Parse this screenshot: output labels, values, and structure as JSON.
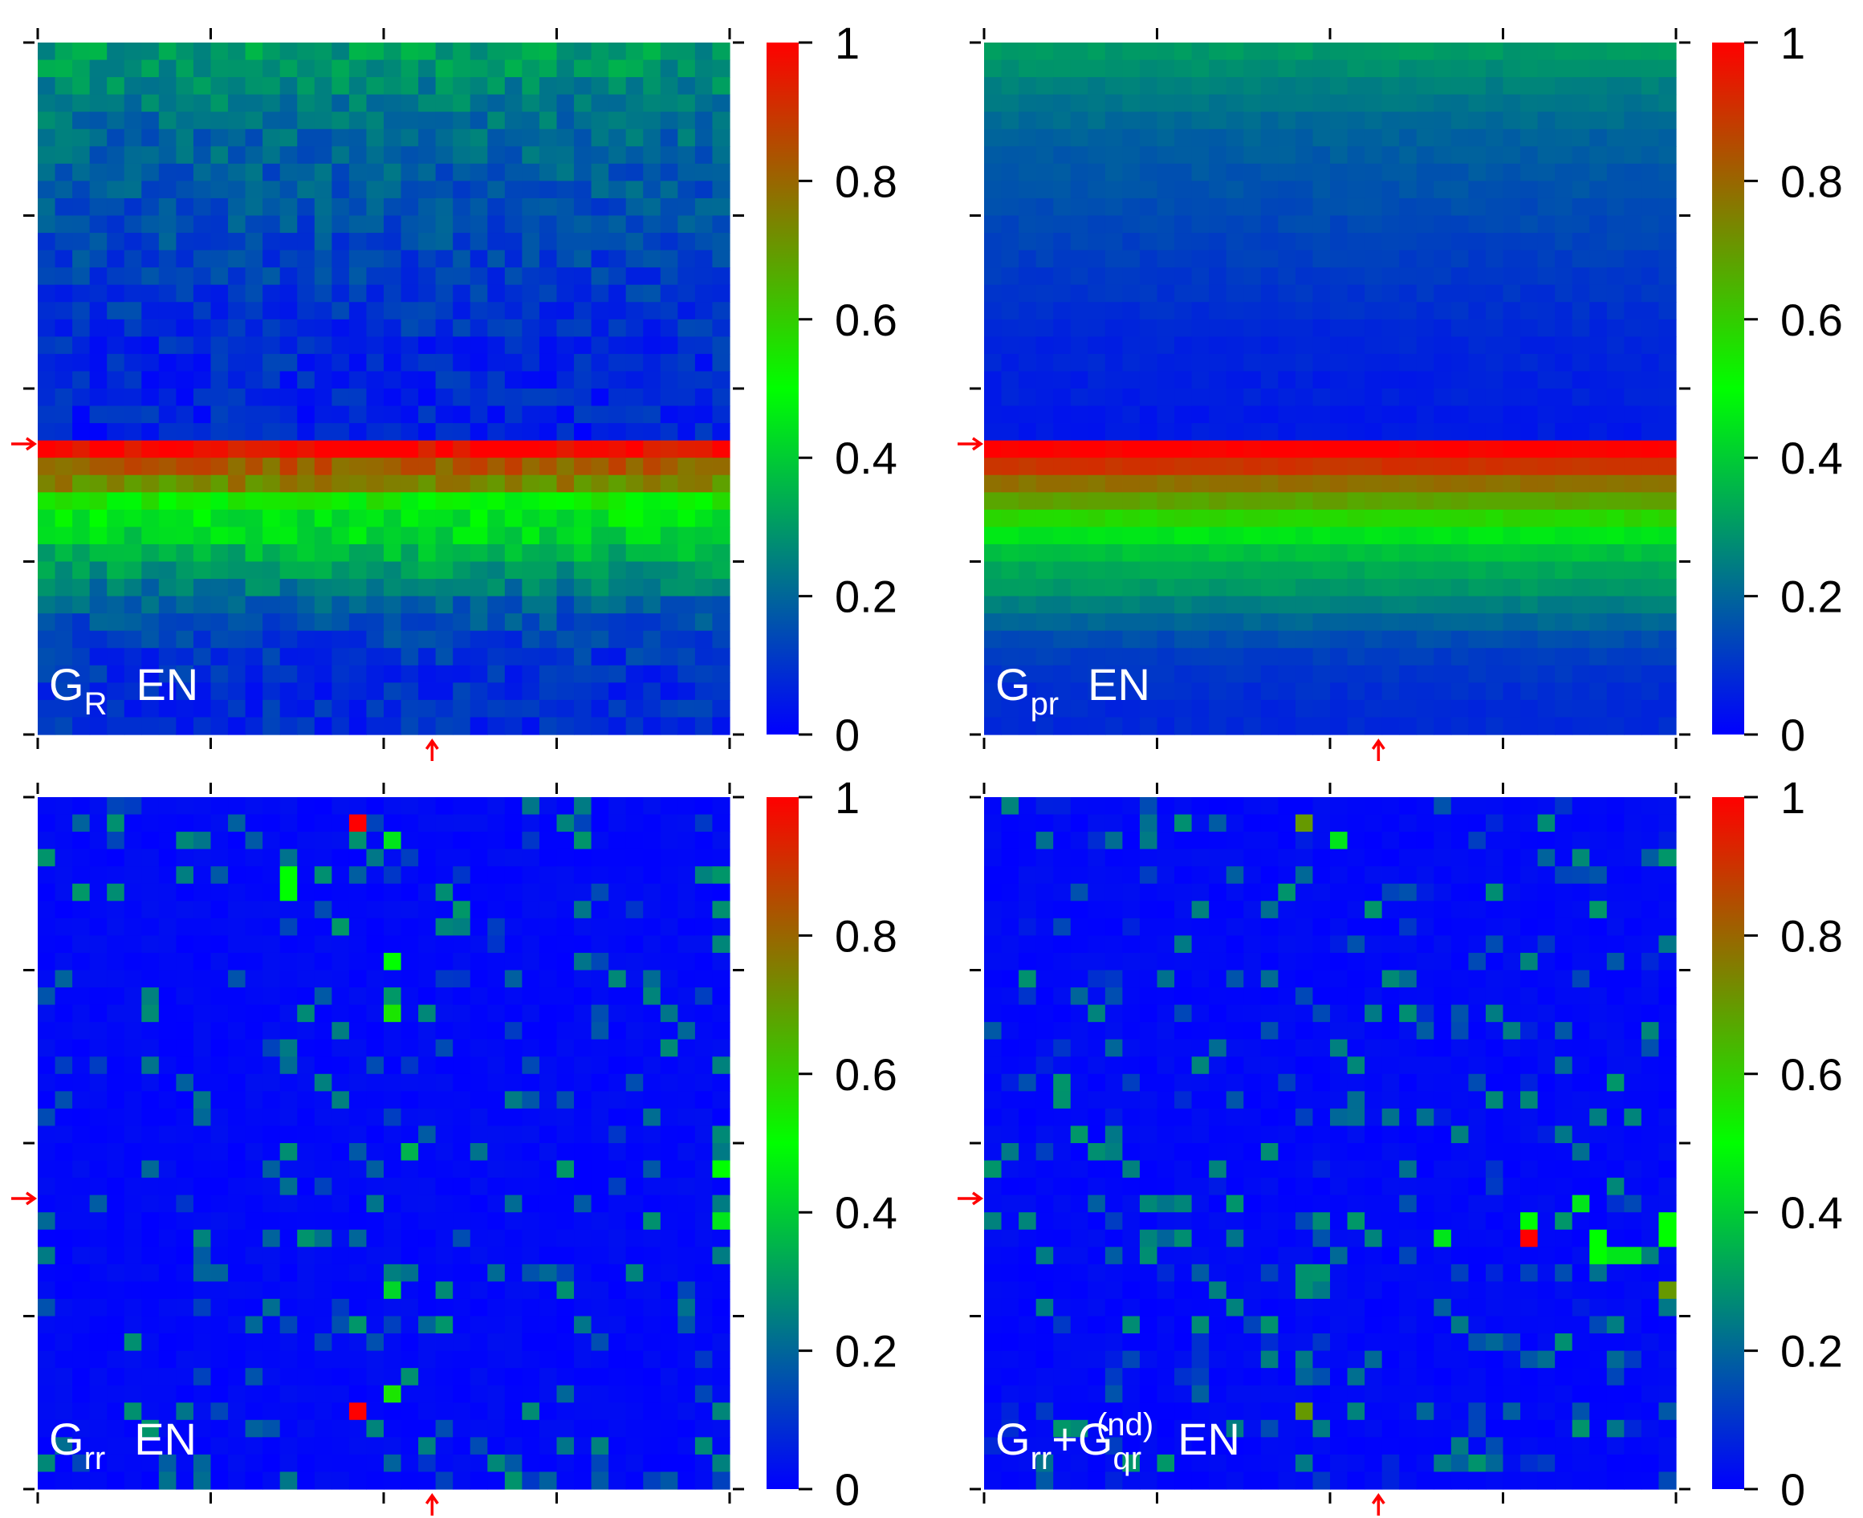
{
  "chart_data": [
    {
      "type": "heatmap",
      "panel": "top-left",
      "label_main": "G",
      "label_sub": "R",
      "label_sup": "",
      "label_tail": "EN",
      "colorbar": {
        "ticks": [
          "0",
          "0.2",
          "0.4",
          "0.6",
          "0.8",
          "1"
        ],
        "range": [
          0,
          1
        ],
        "colormap": [
          "#0000ff",
          "#00ff00",
          "#ff0000"
        ]
      },
      "grid": [
        40,
        40
      ],
      "pattern": "smooth-bands",
      "bands": [
        [
          0,
          0.3
        ],
        [
          1,
          0.29
        ],
        [
          2,
          0.26
        ],
        [
          3,
          0.24
        ],
        [
          4,
          0.22
        ],
        [
          5,
          0.2
        ],
        [
          6,
          0.19
        ],
        [
          7,
          0.18
        ],
        [
          8,
          0.17
        ],
        [
          9,
          0.16
        ],
        [
          10,
          0.15
        ],
        [
          11,
          0.14
        ],
        [
          12,
          0.13
        ],
        [
          13,
          0.12
        ],
        [
          14,
          0.11
        ],
        [
          15,
          0.1
        ],
        [
          16,
          0.09
        ],
        [
          17,
          0.08
        ],
        [
          18,
          0.08
        ],
        [
          19,
          0.07
        ],
        [
          20,
          0.07
        ],
        [
          21,
          0.07
        ],
        [
          22,
          0.06
        ],
        [
          23,
          0.98
        ],
        [
          24,
          0.82
        ],
        [
          25,
          0.74
        ],
        [
          26,
          0.52
        ],
        [
          27,
          0.46
        ],
        [
          28,
          0.42
        ],
        [
          29,
          0.35
        ],
        [
          30,
          0.3
        ],
        [
          31,
          0.24
        ],
        [
          32,
          0.18
        ],
        [
          33,
          0.15
        ],
        [
          34,
          0.12
        ],
        [
          35,
          0.1
        ],
        [
          36,
          0.09
        ],
        [
          37,
          0.08
        ],
        [
          38,
          0.08
        ],
        [
          39,
          0.08
        ]
      ],
      "noise": 0.06,
      "highlight_row": 23,
      "highlight_col": 23
    },
    {
      "type": "heatmap",
      "panel": "top-right",
      "label_main": "G",
      "label_sub": "pr",
      "label_sup": "",
      "label_tail": "EN",
      "colorbar": {
        "ticks": [
          "0",
          "0.2",
          "0.4",
          "0.6",
          "0.8",
          "1"
        ],
        "range": [
          0,
          1
        ],
        "colormap": [
          "#0000ff",
          "#00ff00",
          "#ff0000"
        ]
      },
      "grid": [
        40,
        40
      ],
      "pattern": "smooth-bands",
      "bands": [
        [
          0,
          0.3
        ],
        [
          1,
          0.28
        ],
        [
          2,
          0.25
        ],
        [
          3,
          0.23
        ],
        [
          4,
          0.21
        ],
        [
          5,
          0.19
        ],
        [
          6,
          0.18
        ],
        [
          7,
          0.17
        ],
        [
          8,
          0.16
        ],
        [
          9,
          0.15
        ],
        [
          10,
          0.14
        ],
        [
          11,
          0.13
        ],
        [
          12,
          0.12
        ],
        [
          13,
          0.11
        ],
        [
          14,
          0.1
        ],
        [
          15,
          0.09
        ],
        [
          16,
          0.08
        ],
        [
          17,
          0.07
        ],
        [
          18,
          0.07
        ],
        [
          19,
          0.06
        ],
        [
          20,
          0.06
        ],
        [
          21,
          0.05
        ],
        [
          22,
          0.05
        ],
        [
          23,
          1.0
        ],
        [
          24,
          0.9
        ],
        [
          25,
          0.78
        ],
        [
          26,
          0.68
        ],
        [
          27,
          0.58
        ],
        [
          28,
          0.45
        ],
        [
          29,
          0.38
        ],
        [
          30,
          0.33
        ],
        [
          31,
          0.3
        ],
        [
          32,
          0.25
        ],
        [
          33,
          0.2
        ],
        [
          34,
          0.15
        ],
        [
          35,
          0.12
        ],
        [
          36,
          0.1
        ],
        [
          37,
          0.09
        ],
        [
          38,
          0.08
        ],
        [
          39,
          0.08
        ]
      ],
      "noise": 0.015,
      "highlight_row": 23,
      "highlight_col": 23
    },
    {
      "type": "heatmap",
      "panel": "bottom-left",
      "label_main": "G",
      "label_sub": "rr",
      "label_sup": "",
      "label_tail": "EN",
      "colorbar": {
        "ticks": [
          "0",
          "0.2",
          "0.4",
          "0.6",
          "0.8",
          "1"
        ],
        "range": [
          0,
          1
        ],
        "colormap": [
          "#0000ff",
          "#00ff00",
          "#ff0000"
        ]
      },
      "grid": [
        40,
        40
      ],
      "pattern": "sparse",
      "density": 0.13,
      "sparse_range": [
        0.1,
        0.3
      ],
      "hot_cells": [
        [
          18,
          1,
          1.0
        ],
        [
          18,
          35,
          1.0
        ],
        [
          20,
          2,
          0.45
        ],
        [
          20,
          9,
          0.5
        ],
        [
          20,
          12,
          0.55
        ],
        [
          20,
          34,
          0.55
        ],
        [
          20,
          28,
          0.42
        ],
        [
          14,
          4,
          0.5
        ],
        [
          14,
          5,
          0.5
        ],
        [
          39,
          21,
          0.5
        ],
        [
          39,
          24,
          0.45
        ],
        [
          21,
          20,
          0.35
        ]
      ],
      "highlight_row": 23,
      "highlight_col": 23
    },
    {
      "type": "heatmap",
      "panel": "bottom-right",
      "label_main": "G",
      "label_sub": "rr",
      "label_sup": "",
      "label_tail": "+",
      "label_main2": "G",
      "label_sub2": "qr",
      "label_sup2": "(nd)",
      "label_tail2": "EN",
      "colorbar": {
        "ticks": [
          "0",
          "0.2",
          "0.4",
          "0.6",
          "0.8",
          "1"
        ],
        "range": [
          0,
          1
        ],
        "colormap": [
          "#0000ff",
          "#00ff00",
          "#ff0000"
        ]
      },
      "grid": [
        40,
        40
      ],
      "pattern": "sparse",
      "density": 0.17,
      "sparse_range": [
        0.05,
        0.3
      ],
      "hot_cells": [
        [
          18,
          1,
          0.7
        ],
        [
          18,
          35,
          0.7
        ],
        [
          31,
          25,
          1.0
        ],
        [
          31,
          24,
          0.5
        ],
        [
          35,
          25,
          0.5
        ],
        [
          35,
          26,
          0.5
        ],
        [
          20,
          2,
          0.45
        ],
        [
          36,
          26,
          0.45
        ],
        [
          37,
          26,
          0.45
        ],
        [
          39,
          25,
          0.5
        ],
        [
          39,
          24,
          0.5
        ],
        [
          39,
          28,
          0.7
        ],
        [
          26,
          25,
          0.45
        ],
        [
          34,
          23,
          0.45
        ]
      ],
      "highlight_row": 23,
      "highlight_col": 23
    }
  ]
}
